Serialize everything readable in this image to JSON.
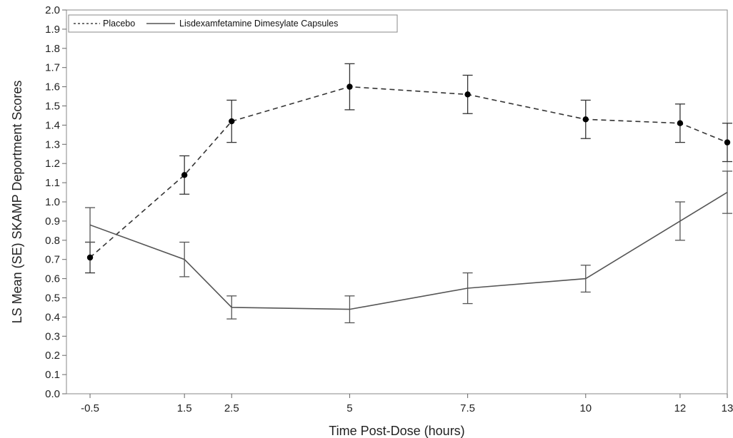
{
  "chart_data": {
    "type": "line",
    "xlabel": "Time Post-Dose (hours)",
    "ylabel": "LS Mean (SE) SKAMP Deportment Scores",
    "ylim": [
      0.0,
      2.0
    ],
    "yticks": [
      "0.0",
      "0.1",
      "0.2",
      "0.3",
      "0.4",
      "0.5",
      "0.6",
      "0.7",
      "0.8",
      "0.9",
      "1.0",
      "1.1",
      "1.2",
      "1.3",
      "1.4",
      "1.5",
      "1.6",
      "1.7",
      "1.8",
      "1.9",
      "2.0"
    ],
    "x": [
      -0.5,
      1.5,
      2.5,
      5,
      7.5,
      10,
      12,
      13
    ],
    "xtick_labels": [
      "-0.5",
      "1.5",
      "2.5",
      "5",
      "7.5",
      "10",
      "12",
      "13"
    ],
    "legend_position": "top-left",
    "grid": false,
    "series": [
      {
        "name": "Placebo",
        "line_style": "dashed",
        "marker": "filled-circle",
        "color": "#000000",
        "values": [
          0.71,
          1.14,
          1.42,
          1.6,
          1.56,
          1.43,
          1.41,
          1.31
        ],
        "se": [
          0.08,
          0.1,
          0.11,
          0.12,
          0.1,
          0.1,
          0.1,
          0.1
        ]
      },
      {
        "name": "Lisdexamfetamine Dimesylate Capsules",
        "line_style": "solid",
        "marker": "none",
        "color": "#555555",
        "values": [
          0.88,
          0.7,
          0.45,
          0.44,
          0.55,
          0.6,
          0.9,
          1.05
        ],
        "se": [
          0.09,
          0.09,
          0.06,
          0.07,
          0.08,
          0.07,
          0.1,
          0.11
        ]
      }
    ]
  }
}
